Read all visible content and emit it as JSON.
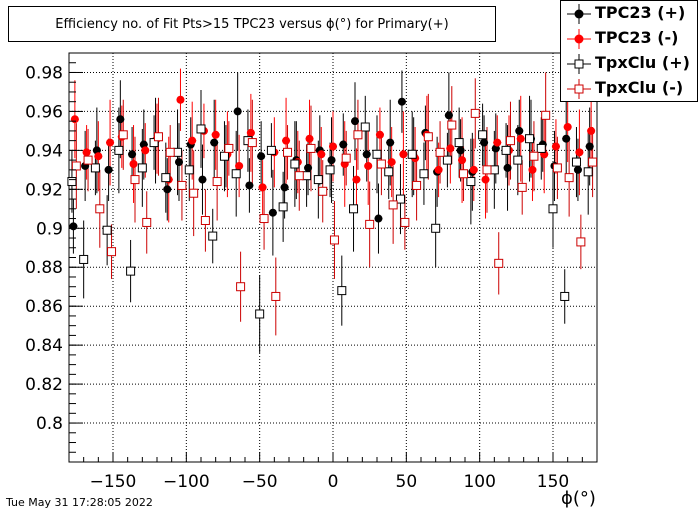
{
  "chart_data": {
    "type": "scatter",
    "title": "Efficiency no. of Fit Pts>15 TPC23 versus ϕ(°) for Primary(+)",
    "xlabel": "ϕ(°)",
    "ylabel": "",
    "xlim": [
      -180,
      180
    ],
    "ylim": [
      0.78,
      0.99
    ],
    "x_ticks": [
      -150,
      -100,
      -50,
      0,
      50,
      100,
      150
    ],
    "x_tick_labels": [
      "−150",
      "−100",
      "−50",
      "0",
      "50",
      "100",
      "150"
    ],
    "y_ticks": [
      0.8,
      0.82,
      0.84,
      0.86,
      0.88,
      0.9,
      0.92,
      0.94,
      0.96,
      0.98
    ],
    "y_tick_labels": [
      "0.8",
      "0.82",
      "0.84",
      "0.86",
      "0.88",
      "0.9",
      "0.92",
      "0.94",
      "0.96",
      "0.98"
    ],
    "grid": true,
    "legend_position": "top-right",
    "series": [
      {
        "name": "TPC23 (+)",
        "color": "#000000",
        "marker": "filled-circle",
        "x": [
          -177,
          -169,
          -161,
          -153,
          -145,
          -137,
          -129,
          -121,
          -113,
          -105,
          -97,
          -89,
          -81,
          -73,
          -65,
          -57,
          -49,
          -41,
          -33,
          -25,
          -17,
          -9,
          -1,
          7,
          15,
          23,
          31,
          39,
          47,
          55,
          63,
          71,
          79,
          87,
          95,
          103,
          111,
          119,
          127,
          135,
          143,
          151,
          159,
          167,
          175
        ],
        "y": [
          0.901,
          0.932,
          0.94,
          0.93,
          0.956,
          0.938,
          0.943,
          0.945,
          0.92,
          0.934,
          0.943,
          0.925,
          0.944,
          0.937,
          0.96,
          0.922,
          0.937,
          0.908,
          0.921,
          0.935,
          0.931,
          0.94,
          0.935,
          0.943,
          0.955,
          0.938,
          0.905,
          0.944,
          0.965,
          0.937,
          0.949,
          0.929,
          0.958,
          0.94,
          0.929,
          0.944,
          0.941,
          0.931,
          0.95,
          0.946,
          0.943,
          0.932,
          0.946,
          0.93,
          0.942
        ]
      },
      {
        "name": "TPC23 (-)",
        "color": "#ff0000",
        "marker": "filled-circle",
        "x": [
          -176,
          -168,
          -160,
          -152,
          -144,
          -136,
          -128,
          -120,
          -112,
          -104,
          -96,
          -88,
          -80,
          -72,
          -64,
          -56,
          -48,
          -40,
          -32,
          -24,
          -16,
          -8,
          0,
          8,
          16,
          24,
          32,
          40,
          48,
          56,
          64,
          72,
          80,
          88,
          96,
          104,
          112,
          120,
          128,
          136,
          144,
          152,
          160,
          168,
          176
        ],
        "y": [
          0.956,
          0.939,
          0.937,
          0.944,
          0.947,
          0.933,
          0.94,
          0.946,
          0.925,
          0.966,
          0.945,
          0.95,
          0.948,
          0.938,
          0.932,
          0.949,
          0.921,
          0.939,
          0.945,
          0.934,
          0.946,
          0.938,
          0.942,
          0.933,
          0.925,
          0.932,
          0.948,
          0.934,
          0.938,
          0.936,
          0.948,
          0.93,
          0.941,
          0.935,
          0.93,
          0.925,
          0.944,
          0.94,
          0.946,
          0.93,
          0.938,
          0.942,
          0.952,
          0.939,
          0.95
        ]
      },
      {
        "name": "TpxClu (+)",
        "color": "#000000",
        "marker": "open-square",
        "x": [
          -178,
          -170,
          -162,
          -154,
          -146,
          -138,
          -130,
          -122,
          -114,
          -106,
          -98,
          -90,
          -82,
          -74,
          -66,
          -58,
          -50,
          -42,
          -34,
          -26,
          -18,
          -10,
          -2,
          6,
          14,
          22,
          30,
          38,
          46,
          54,
          62,
          70,
          78,
          86,
          94,
          102,
          110,
          118,
          126,
          134,
          142,
          150,
          158,
          166,
          174
        ],
        "y": [
          0.924,
          0.884,
          0.931,
          0.899,
          0.94,
          0.878,
          0.931,
          0.944,
          0.926,
          0.939,
          0.93,
          0.951,
          0.896,
          0.937,
          0.928,
          0.945,
          0.856,
          0.94,
          0.911,
          0.933,
          0.927,
          0.925,
          0.93,
          0.868,
          0.91,
          0.952,
          0.938,
          0.929,
          0.915,
          0.938,
          0.928,
          0.9,
          0.935,
          0.944,
          0.924,
          0.948,
          0.93,
          0.94,
          0.935,
          0.946,
          0.941,
          0.91,
          0.865,
          0.934,
          0.929
        ]
      },
      {
        "name": "TpxClu (-)",
        "color": "#cc0000",
        "marker": "open-square",
        "x": [
          -175,
          -167,
          -159,
          -151,
          -143,
          -135,
          -127,
          -119,
          -111,
          -103,
          -95,
          -87,
          -79,
          -71,
          -63,
          -55,
          -47,
          -39,
          -31,
          -23,
          -15,
          -7,
          1,
          9,
          17,
          25,
          33,
          41,
          49,
          57,
          65,
          73,
          81,
          89,
          97,
          105,
          113,
          121,
          129,
          137,
          145,
          153,
          161,
          169,
          177
        ],
        "y": [
          0.932,
          0.935,
          0.91,
          0.888,
          0.948,
          0.925,
          0.903,
          0.947,
          0.939,
          0.922,
          0.918,
          0.904,
          0.924,
          0.941,
          0.87,
          0.944,
          0.905,
          0.865,
          0.939,
          0.927,
          0.941,
          0.919,
          0.894,
          0.936,
          0.948,
          0.902,
          0.933,
          0.912,
          0.903,
          0.922,
          0.947,
          0.939,
          0.953,
          0.928,
          0.959,
          0.93,
          0.882,
          0.945,
          0.921,
          0.937,
          0.958,
          0.931,
          0.926,
          0.893,
          0.934
        ]
      }
    ]
  },
  "footer": {
    "timestamp": "Tue May 31 17:28:05 2022"
  }
}
